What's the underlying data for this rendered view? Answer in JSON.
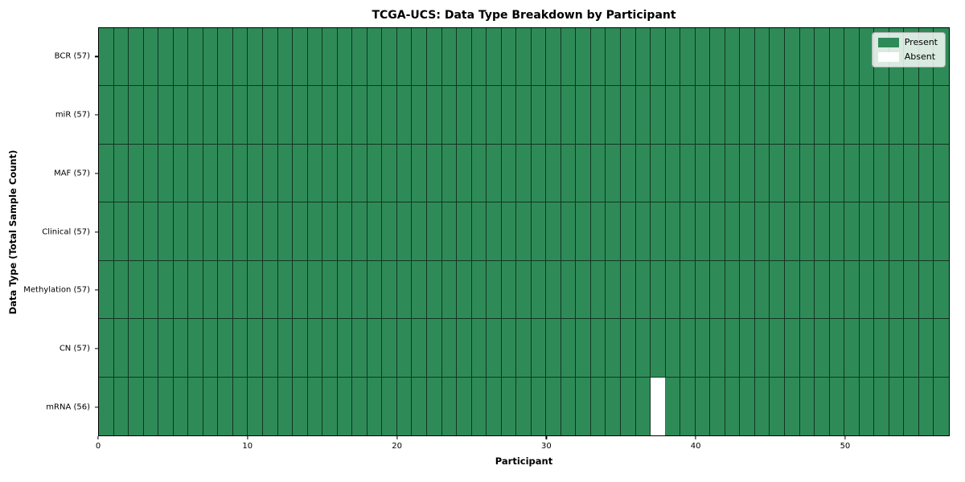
{
  "figure": {
    "title": "TCGA-UCS: Data Type Breakdown by Participant",
    "xlabel": "Participant",
    "ylabel": "Data Type (Total Sample Count)"
  },
  "legend": {
    "items": [
      {
        "label": "Present",
        "color": "#2E8B57"
      },
      {
        "label": "Absent",
        "color": "#FFFFFF"
      }
    ]
  },
  "chart_data": {
    "type": "heatmap",
    "title": "TCGA-UCS: Data Type Breakdown by Participant",
    "xlabel": "Participant",
    "ylabel": "Data Type (Total Sample Count)",
    "n_participants": 57,
    "x_range": [
      0,
      57
    ],
    "x_ticks": [
      0,
      10,
      20,
      30,
      40,
      50
    ],
    "rows": [
      {
        "label": "BCR (57)",
        "present_count": 57,
        "absent_participants": []
      },
      {
        "label": "miR (57)",
        "present_count": 57,
        "absent_participants": []
      },
      {
        "label": "MAF (57)",
        "present_count": 57,
        "absent_participants": []
      },
      {
        "label": "Clinical (57)",
        "present_count": 57,
        "absent_participants": []
      },
      {
        "label": "Methylation (57)",
        "present_count": 57,
        "absent_participants": []
      },
      {
        "label": "CN (57)",
        "present_count": 57,
        "absent_participants": []
      },
      {
        "label": "mRNA (56)",
        "present_count": 56,
        "absent_participants": [
          37
        ]
      }
    ],
    "colors": {
      "present": "#2E8B57",
      "absent": "#FFFFFF",
      "cell_edge": "rgba(0,0,0,0.62)"
    },
    "legend_position": "upper right",
    "grid": "cell-borders"
  }
}
